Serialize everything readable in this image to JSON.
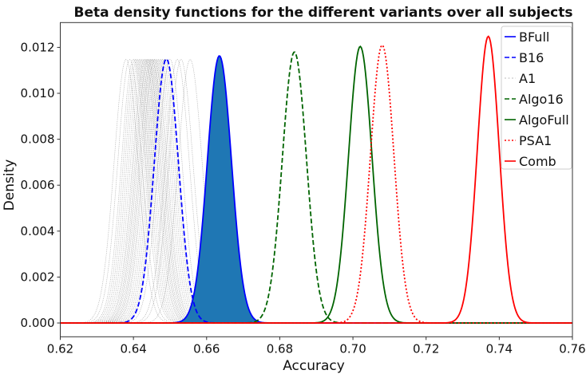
{
  "chart_data": {
    "type": "line",
    "title": "Beta density functions for the different variants over all subjects",
    "xlabel": "Accuracy",
    "ylabel": "Density",
    "xlim": [
      0.62,
      0.76
    ],
    "ylim": [
      -0.0006,
      0.01308
    ],
    "xticks": [
      "0.62",
      "0.64",
      "0.66",
      "0.68",
      "0.70",
      "0.72",
      "0.74",
      "0.76"
    ],
    "yticks": [
      "0.000",
      "0.002",
      "0.004",
      "0.006",
      "0.008",
      "0.010",
      "0.012"
    ],
    "grid": false,
    "legend_position": "top-right",
    "series": [
      {
        "name": "BFull",
        "color": "#0000ff",
        "style": "solid",
        "filled": true,
        "fill": "#1f77b4",
        "peak_accuracy": 0.6635,
        "peak_density": 0.01163,
        "sd": 0.0033
      },
      {
        "name": "B16",
        "color": "#0000ff",
        "style": "dashed",
        "peak_accuracy": 0.649,
        "peak_density": 0.0115,
        "sd": 0.0033
      },
      {
        "name": "A1",
        "color": "#999999",
        "style": "dotted",
        "peak_density": 0.01148,
        "sd": 0.0033,
        "peak_accuracies": [
          0.638,
          0.639,
          0.64,
          0.6405,
          0.641,
          0.6415,
          0.642,
          0.6425,
          0.643,
          0.6433,
          0.6437,
          0.644,
          0.6443,
          0.6447,
          0.645,
          0.6453,
          0.6457,
          0.646,
          0.6465,
          0.647,
          0.6475,
          0.648,
          0.6485,
          0.649,
          0.65,
          0.652,
          0.653,
          0.6555
        ]
      },
      {
        "name": "Algo16",
        "color": "#006400",
        "style": "dashed",
        "peak_accuracy": 0.684,
        "peak_density": 0.0118,
        "sd": 0.0033
      },
      {
        "name": "AlgoFull",
        "color": "#006400",
        "style": "solid",
        "peak_accuracy": 0.702,
        "peak_density": 0.01204,
        "sd": 0.0032
      },
      {
        "name": "PSA1",
        "color": "#ff0000",
        "style": "dotted",
        "peak_accuracy": 0.708,
        "peak_density": 0.0121,
        "sd": 0.0032
      },
      {
        "name": "Comb",
        "color": "#ff0000",
        "style": "solid",
        "peak_accuracy": 0.737,
        "peak_density": 0.01248,
        "sd": 0.003
      }
    ]
  }
}
